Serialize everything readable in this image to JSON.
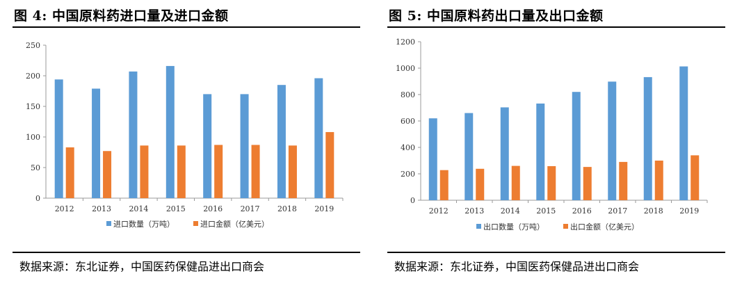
{
  "figures": [
    {
      "title": "图  4:  中国原料药进口量及进口金额",
      "source": "数据来源：东北证券，中国医药保健品进出口商会"
    },
    {
      "title": "图  5:  中国原料药出口量及出口金额",
      "source": "数据来源：东北证券，中国医药保健品进出口商会"
    }
  ],
  "colors": {
    "series1": "#5b9bd5",
    "series2": "#ed7d31",
    "axis": "#999999"
  },
  "chart_data": [
    {
      "type": "bar",
      "categories": [
        "2012",
        "2013",
        "2014",
        "2015",
        "2016",
        "2017",
        "2018",
        "2019"
      ],
      "series": [
        {
          "name": "进口数量（万吨）",
          "values": [
            194,
            179,
            207,
            216,
            170,
            170,
            185,
            196
          ]
        },
        {
          "name": "进口金额（亿美元）",
          "values": [
            83,
            77,
            86,
            86,
            87,
            87,
            86,
            108
          ]
        }
      ],
      "ylim": [
        0,
        250
      ],
      "yticks": [
        "0",
        "50",
        "100",
        "150",
        "200",
        "250"
      ],
      "legend": "bottom",
      "grid": false
    },
    {
      "type": "bar",
      "categories": [
        "2012",
        "2013",
        "2014",
        "2015",
        "2016",
        "2017",
        "2018",
        "2019"
      ],
      "series": [
        {
          "name": "出口数量（万吨）",
          "values": [
            620,
            660,
            703,
            732,
            820,
            898,
            932,
            1013
          ]
        },
        {
          "name": "出口金额（亿美元）",
          "values": [
            228,
            238,
            260,
            258,
            252,
            290,
            300,
            340
          ]
        }
      ],
      "ylim": [
        0,
        1200
      ],
      "yticks": [
        "0",
        "200",
        "400",
        "600",
        "800",
        "1000",
        "1200"
      ],
      "legend": "bottom",
      "grid": false
    }
  ]
}
